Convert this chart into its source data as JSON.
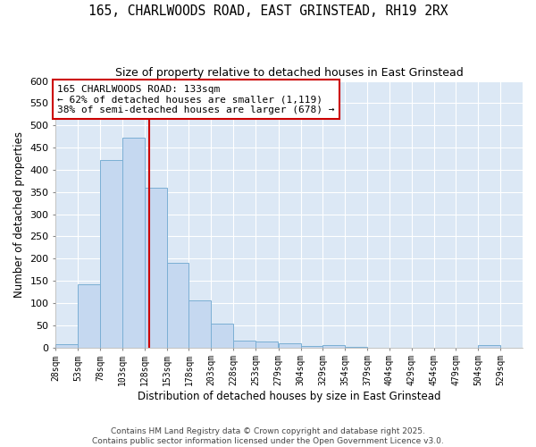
{
  "title": "165, CHARLWOODS ROAD, EAST GRINSTEAD, RH19 2RX",
  "subtitle": "Size of property relative to detached houses in East Grinstead",
  "xlabel": "Distribution of detached houses by size in East Grinstead",
  "ylabel": "Number of detached properties",
  "bin_edges": [
    28,
    53,
    78,
    103,
    128,
    153,
    178,
    203,
    228,
    253,
    279,
    304,
    329,
    354,
    379,
    404,
    429,
    454,
    479,
    504,
    529
  ],
  "bin_counts": [
    8,
    142,
    422,
    473,
    360,
    191,
    106,
    54,
    16,
    13,
    9,
    3,
    5,
    2,
    0,
    0,
    0,
    0,
    0,
    5
  ],
  "bar_color": "#c5d8f0",
  "bar_edge_color": "#7bafd4",
  "property_size": 133,
  "vline_color": "#cc0000",
  "annotation_line1": "165 CHARLWOODS ROAD: 133sqm",
  "annotation_line2": "← 62% of detached houses are smaller (1,119)",
  "annotation_line3": "38% of semi-detached houses are larger (678) →",
  "annotation_box_color": "#ffffff",
  "annotation_box_edge": "#cc0000",
  "ylim": [
    0,
    600
  ],
  "yticks": [
    0,
    50,
    100,
    150,
    200,
    250,
    300,
    350,
    400,
    450,
    500,
    550,
    600
  ],
  "figure_bg": "#ffffff",
  "plot_bg": "#dce8f5",
  "grid_color": "#ffffff",
  "footer_text": "Contains HM Land Registry data © Crown copyright and database right 2025.\nContains public sector information licensed under the Open Government Licence v3.0."
}
